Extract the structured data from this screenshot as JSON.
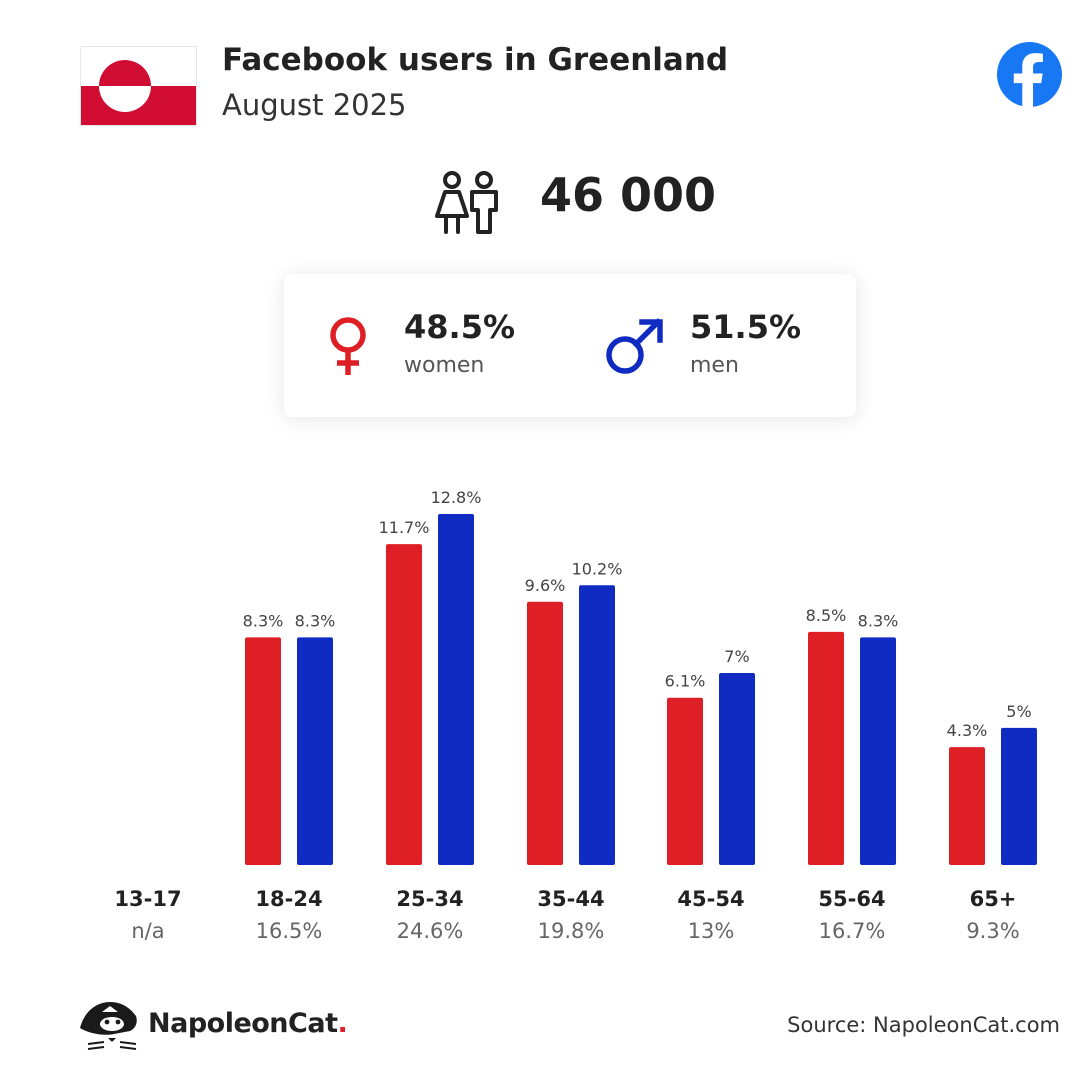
{
  "header": {
    "title": "Facebook users in Greenland",
    "subtitle": "August 2025"
  },
  "total_users": "46 000",
  "gender": {
    "women": {
      "pct": "48.5%",
      "label": "women"
    },
    "men": {
      "pct": "51.5%",
      "label": "men"
    }
  },
  "footer": {
    "brand": "NapoleonCat",
    "brand_dot": ".",
    "source": "Source: NapoleonCat.com"
  },
  "colors": {
    "women": "#df1f26",
    "men": "#0f2bc2",
    "facebook": "#1877f2",
    "flag_red": "#d00c33"
  },
  "icons": [
    "flag-greenland",
    "facebook-icon",
    "people-icon",
    "female-symbol-icon",
    "male-symbol-icon",
    "napoleoncat-logo-icon"
  ],
  "chart_data": {
    "type": "bar",
    "categories": [
      "13-17",
      "18-24",
      "25-34",
      "35-44",
      "45-54",
      "55-64",
      "65+"
    ],
    "category_totals": [
      "n/a",
      "16.5%",
      "24.6%",
      "19.8%",
      "13%",
      "16.7%",
      "9.3%"
    ],
    "series": [
      {
        "name": "women",
        "values": [
          null,
          8.3,
          11.7,
          9.6,
          6.1,
          8.5,
          4.3
        ],
        "labels": [
          "",
          "8.3%",
          "11.7%",
          "9.6%",
          "6.1%",
          "8.5%",
          "4.3%"
        ]
      },
      {
        "name": "men",
        "values": [
          null,
          8.3,
          12.8,
          10.2,
          7,
          8.3,
          5
        ],
        "labels": [
          "",
          "8.3%",
          "12.8%",
          "10.2%",
          "7%",
          "8.3%",
          "5%"
        ]
      }
    ],
    "ylim": [
      0,
      12.8
    ],
    "grid": false,
    "legend": "none"
  }
}
